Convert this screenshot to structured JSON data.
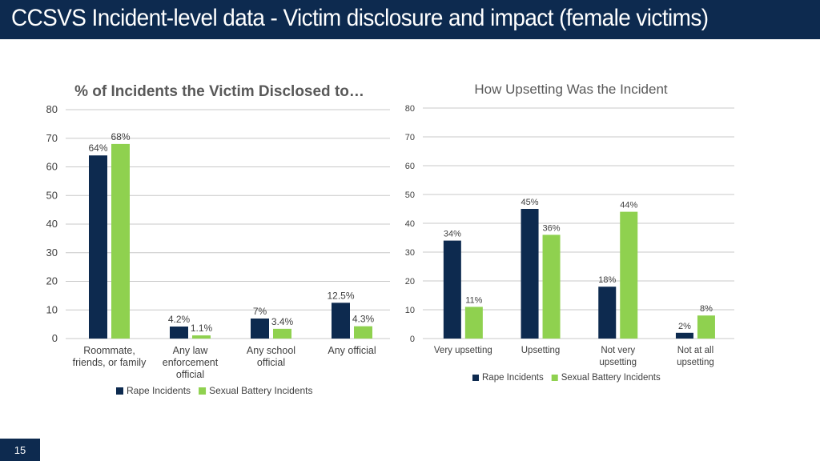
{
  "slide": {
    "title": "CCSVS Incident-level data - Victim disclosure and impact (female victims)",
    "page_number": "15",
    "colors": {
      "header_bg": "#0d2a4f",
      "rape": "#0d2a4f",
      "battery": "#8fd14f",
      "grid": "#c8c8c8",
      "text": "#404040"
    }
  },
  "chart_data": [
    {
      "type": "bar",
      "title": "% of Incidents the Victim Disclosed to…",
      "categories": [
        [
          "Roommate,",
          "friends, or family"
        ],
        [
          "Any law",
          "enforcement",
          "official"
        ],
        [
          "Any school",
          "official"
        ],
        [
          "Any official"
        ]
      ],
      "series": [
        {
          "name": "Rape Incidents",
          "color": "#0d2a4f",
          "values": [
            64,
            4.2,
            7,
            12.5
          ],
          "labels": [
            "64%",
            "4.2%",
            "7%",
            "12.5%"
          ]
        },
        {
          "name": "Sexual Battery Incidents",
          "color": "#8fd14f",
          "values": [
            68,
            1.1,
            3.4,
            4.3
          ],
          "labels": [
            "68%",
            "1.1%",
            "3.4%",
            "4.3%"
          ]
        }
      ],
      "ylim": [
        0,
        80
      ],
      "yticks": [
        "0",
        "10",
        "20",
        "30",
        "40",
        "50",
        "60",
        "70",
        "80"
      ],
      "grid": true,
      "legend": "bottom"
    },
    {
      "type": "bar",
      "title": "How Upsetting Was the Incident",
      "categories": [
        [
          "Very upsetting"
        ],
        [
          "Upsetting"
        ],
        [
          "Not very",
          "upsetting"
        ],
        [
          "Not at all",
          "upsetting"
        ]
      ],
      "series": [
        {
          "name": "Rape Incidents",
          "color": "#0d2a4f",
          "values": [
            34,
            45,
            18,
            2
          ],
          "labels": [
            "34%",
            "45%",
            "18%",
            "2%"
          ]
        },
        {
          "name": "Sexual Battery Incidents",
          "color": "#8fd14f",
          "values": [
            11,
            36,
            44,
            8
          ],
          "labels": [
            "11%",
            "36%",
            "44%",
            "8%"
          ]
        }
      ],
      "ylim": [
        0,
        80
      ],
      "yticks": [
        "0",
        "10",
        "20",
        "30",
        "40",
        "50",
        "60",
        "70",
        "80"
      ],
      "grid": true,
      "legend": "bottom"
    }
  ]
}
